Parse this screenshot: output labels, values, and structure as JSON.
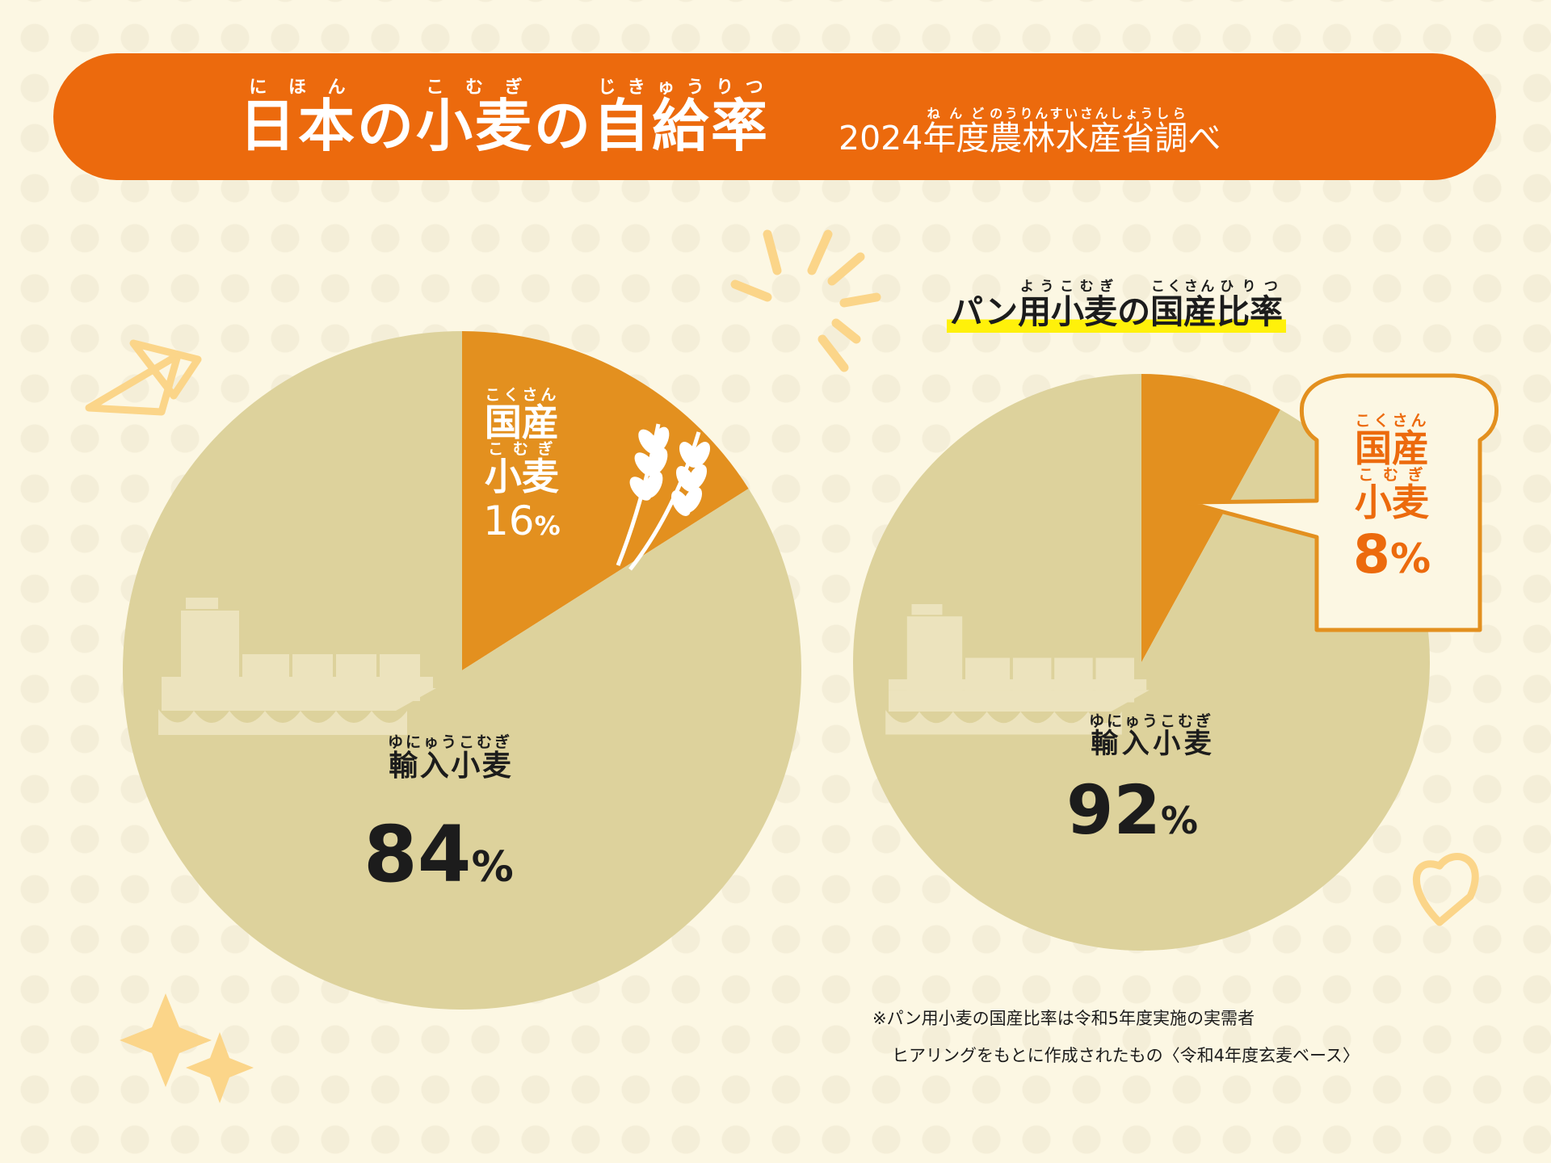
{
  "title": {
    "main": [
      {
        "text": "日本",
        "ruby": "にほん"
      },
      {
        "text": "の",
        "ruby": ""
      },
      {
        "text": "小麦",
        "ruby": "こむぎ"
      },
      {
        "text": "の",
        "ruby": ""
      },
      {
        "text": "自給率",
        "ruby": "じきゅうりつ"
      }
    ],
    "sub": [
      {
        "text": "2024",
        "ruby": ""
      },
      {
        "text": "年度",
        "ruby": "ねんど"
      },
      {
        "text": "農林水産省",
        "ruby": "のうりんすいさんしょう"
      },
      {
        "text": "調",
        "ruby": "しら"
      },
      {
        "text": "べ",
        "ruby": ""
      }
    ]
  },
  "chart_data": [
    {
      "type": "pie",
      "title": "日本の小麦の自給率",
      "slices": [
        {
          "label": "国産小麦",
          "value": 16,
          "color": "#e3901f"
        },
        {
          "label": "輸入小麦",
          "value": 84,
          "color": "#ddd29c"
        }
      ],
      "labels": {
        "domestic": {
          "line1": "国産",
          "ruby1": "こくさん",
          "line2": "小麦",
          "ruby2": "こむぎ",
          "value": "16",
          "unit": "%"
        },
        "imported": {
          "text": "輸入小麦",
          "ruby": "ゆにゅうこむぎ",
          "value": "84",
          "unit": "%"
        }
      }
    },
    {
      "type": "pie",
      "title": "パン用小麦の国産比率",
      "slices": [
        {
          "label": "国産小麦",
          "value": 8,
          "color": "#e3901f"
        },
        {
          "label": "輸入小麦",
          "value": 92,
          "color": "#ddd29c"
        }
      ],
      "labels": {
        "domestic": {
          "line1": "国産",
          "ruby1": "こくさん",
          "line2": "小麦",
          "ruby2": "こむぎ",
          "value": "8",
          "unit": "%"
        },
        "imported": {
          "text": "輸入小麦",
          "ruby": "ゆにゅうこむぎ",
          "value": "92",
          "unit": "%"
        }
      }
    }
  ],
  "subheading": [
    {
      "text": "パン",
      "ruby": ""
    },
    {
      "text": "用小麦",
      "ruby": "ようこむぎ"
    },
    {
      "text": "の",
      "ruby": ""
    },
    {
      "text": "国産",
      "ruby": "こくさん"
    },
    {
      "text": "比率",
      "ruby": "ひりつ"
    }
  ],
  "note": {
    "line1": "※パン用小麦の国産比率は令和5年度実施の実需者",
    "line2": "ヒアリングをもとに作成されたもの〈令和4年度玄麦ベース〉"
  },
  "colors": {
    "background": "#fcf7e3",
    "banner": "#ec6a0d",
    "domestic": "#e3901f",
    "imported": "#ddd29c",
    "highlight": "#fff10a",
    "decor": "#fbd589"
  }
}
